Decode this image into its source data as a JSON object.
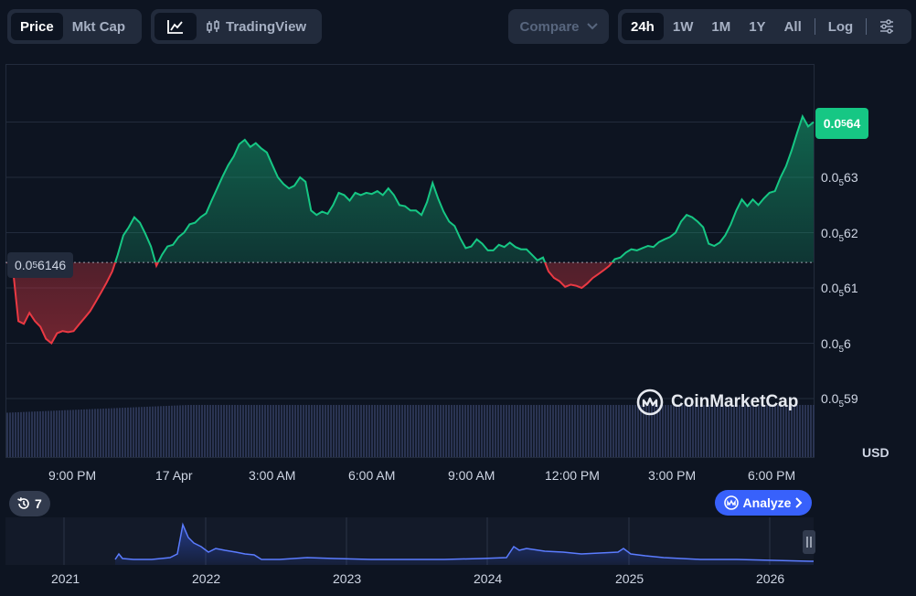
{
  "toolbar": {
    "price_label": "Price",
    "mktcap_label": "Mkt Cap",
    "tradingview_label": "TradingView",
    "compare_label": "Compare",
    "ranges": [
      "24h",
      "1W",
      "1M",
      "1Y",
      "All"
    ],
    "active_range": "24h",
    "log_label": "Log"
  },
  "chart_data": {
    "type": "area",
    "y_axis_labels": [
      {
        "prefix": "0.0",
        "sub": "5",
        "suffix": "63"
      },
      {
        "prefix": "0.0",
        "sub": "5",
        "suffix": "62"
      },
      {
        "prefix": "0.0",
        "sub": "5",
        "suffix": "61"
      },
      {
        "prefix": "0.0",
        "sub": "5",
        "suffix": "6"
      },
      {
        "prefix": "0.0",
        "sub": "5",
        "suffix": "59"
      }
    ],
    "x_tick_labels": [
      "9:00 PM",
      "17 Apr",
      "3:00 AM",
      "6:00 AM",
      "9:00 AM",
      "12:00 PM",
      "3:00 PM",
      "6:00 PM"
    ],
    "current_price": {
      "prefix": "0.0",
      "sub": "5",
      "suffix": "64"
    },
    "open_price": {
      "prefix": "0.0",
      "sub": "5",
      "suffix": "6146"
    },
    "currency": "USD",
    "up_color": "#16c784",
    "down_color": "#ea3943",
    "price_points": [
      [
        0,
        0.6146
      ],
      [
        2,
        0.6136
      ],
      [
        4,
        0.604
      ],
      [
        6,
        0.6035
      ],
      [
        8,
        0.6055
      ],
      [
        10,
        0.604
      ],
      [
        12,
        0.603
      ],
      [
        14,
        0.6008
      ],
      [
        16,
        0.6
      ],
      [
        18,
        0.6018
      ],
      [
        20,
        0.6022
      ],
      [
        22,
        0.602
      ],
      [
        24,
        0.6022
      ],
      [
        26,
        0.6034
      ],
      [
        28,
        0.6046
      ],
      [
        30,
        0.6058
      ],
      [
        32,
        0.6075
      ],
      [
        34,
        0.6092
      ],
      [
        36,
        0.611
      ],
      [
        38,
        0.613
      ],
      [
        40,
        0.616
      ],
      [
        42,
        0.6195
      ],
      [
        44,
        0.621
      ],
      [
        46,
        0.6228
      ],
      [
        48,
        0.6218
      ],
      [
        50,
        0.6198
      ],
      [
        52,
        0.6175
      ],
      [
        54,
        0.614
      ],
      [
        56,
        0.616
      ],
      [
        58,
        0.6175
      ],
      [
        60,
        0.6178
      ],
      [
        62,
        0.6192
      ],
      [
        64,
        0.62
      ],
      [
        66,
        0.6215
      ],
      [
        68,
        0.6218
      ],
      [
        70,
        0.6228
      ],
      [
        72,
        0.6235
      ],
      [
        74,
        0.6258
      ],
      [
        76,
        0.628
      ],
      [
        78,
        0.6302
      ],
      [
        80,
        0.6322
      ],
      [
        82,
        0.6338
      ],
      [
        84,
        0.636
      ],
      [
        86,
        0.6368
      ],
      [
        88,
        0.6355
      ],
      [
        90,
        0.6362
      ],
      [
        92,
        0.6352
      ],
      [
        94,
        0.6345
      ],
      [
        96,
        0.6322
      ],
      [
        98,
        0.63
      ],
      [
        100,
        0.6288
      ],
      [
        102,
        0.628
      ],
      [
        104,
        0.6285
      ],
      [
        106,
        0.63
      ],
      [
        108,
        0.6292
      ],
      [
        110,
        0.624
      ],
      [
        112,
        0.6232
      ],
      [
        114,
        0.6238
      ],
      [
        116,
        0.6234
      ],
      [
        118,
        0.625
      ],
      [
        120,
        0.6272
      ],
      [
        122,
        0.6268
      ],
      [
        124,
        0.6258
      ],
      [
        126,
        0.6272
      ],
      [
        128,
        0.6268
      ],
      [
        130,
        0.6272
      ],
      [
        132,
        0.627
      ],
      [
        134,
        0.6275
      ],
      [
        136,
        0.6268
      ],
      [
        138,
        0.628
      ],
      [
        140,
        0.6268
      ],
      [
        142,
        0.625
      ],
      [
        144,
        0.6248
      ],
      [
        146,
        0.624
      ],
      [
        148,
        0.624
      ],
      [
        150,
        0.6232
      ],
      [
        152,
        0.6255
      ],
      [
        154,
        0.629
      ],
      [
        156,
        0.6262
      ],
      [
        158,
        0.6238
      ],
      [
        160,
        0.622
      ],
      [
        162,
        0.6212
      ],
      [
        164,
        0.619
      ],
      [
        166,
        0.6172
      ],
      [
        168,
        0.6175
      ],
      [
        170,
        0.6188
      ],
      [
        172,
        0.618
      ],
      [
        174,
        0.6168
      ],
      [
        176,
        0.6168
      ],
      [
        178,
        0.6178
      ],
      [
        180,
        0.6174
      ],
      [
        182,
        0.6182
      ],
      [
        184,
        0.6174
      ],
      [
        186,
        0.617
      ],
      [
        188,
        0.617
      ],
      [
        190,
        0.616
      ],
      [
        192,
        0.615
      ],
      [
        194,
        0.6155
      ],
      [
        196,
        0.613
      ],
      [
        198,
        0.6118
      ],
      [
        200,
        0.6112
      ],
      [
        202,
        0.6102
      ],
      [
        204,
        0.6106
      ],
      [
        206,
        0.6104
      ],
      [
        208,
        0.61
      ],
      [
        210,
        0.6108
      ],
      [
        212,
        0.6118
      ],
      [
        214,
        0.6125
      ],
      [
        216,
        0.6132
      ],
      [
        218,
        0.614
      ],
      [
        220,
        0.6152
      ],
      [
        222,
        0.6155
      ],
      [
        224,
        0.6164
      ],
      [
        226,
        0.617
      ],
      [
        228,
        0.6168
      ],
      [
        230,
        0.6172
      ],
      [
        232,
        0.6176
      ],
      [
        234,
        0.6174
      ],
      [
        236,
        0.6183
      ],
      [
        238,
        0.6188
      ],
      [
        240,
        0.6192
      ],
      [
        242,
        0.62
      ],
      [
        244,
        0.622
      ],
      [
        246,
        0.6232
      ],
      [
        248,
        0.6228
      ],
      [
        250,
        0.622
      ],
      [
        252,
        0.621
      ],
      [
        254,
        0.618
      ],
      [
        256,
        0.6176
      ],
      [
        258,
        0.6182
      ],
      [
        260,
        0.6195
      ],
      [
        262,
        0.6215
      ],
      [
        264,
        0.624
      ],
      [
        266,
        0.626
      ],
      [
        268,
        0.6248
      ],
      [
        270,
        0.626
      ],
      [
        272,
        0.625
      ],
      [
        274,
        0.6262
      ],
      [
        276,
        0.6272
      ],
      [
        278,
        0.6275
      ],
      [
        280,
        0.63
      ],
      [
        282,
        0.632
      ],
      [
        284,
        0.6348
      ],
      [
        286,
        0.638
      ],
      [
        288,
        0.641
      ],
      [
        290,
        0.6392
      ],
      [
        292,
        0.64
      ]
    ],
    "volume_level": 0.92
  },
  "watermark": {
    "brand": "CoinMarketCap"
  },
  "history_badge": {
    "count": "7"
  },
  "analyze_button": {
    "label": "Analyze"
  },
  "navigator": {
    "years": [
      "2021",
      "2022",
      "2023",
      "2024",
      "2025",
      "2026"
    ]
  }
}
